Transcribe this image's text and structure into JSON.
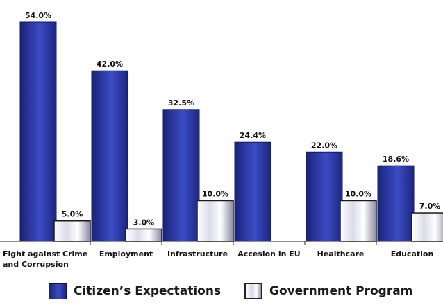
{
  "chart_data": {
    "type": "bar",
    "categories": [
      [
        "Fight against Crime",
        "and Corrupsion"
      ],
      [
        "Employment"
      ],
      [
        "Infrastructure"
      ],
      [
        "Accesion in EU"
      ],
      [
        "Healthcare"
      ],
      [
        "Education"
      ]
    ],
    "series": [
      {
        "name": "Citizen's Expectations",
        "values": [
          54.0,
          42.0,
          32.5,
          24.4,
          22.0,
          18.6
        ],
        "labels": [
          "54.0%",
          "42.0%",
          "32.5%",
          "24.4%",
          "22.0%",
          "18.6%"
        ],
        "color": "#2a3a9e"
      },
      {
        "name": "Government Program",
        "values": [
          5.0,
          3.0,
          10.0,
          null,
          10.0,
          7.0
        ],
        "labels": [
          "5.0%",
          "3.0%",
          "10.0%",
          null,
          "10.0%",
          "7.0%"
        ],
        "color": "#ffffff"
      }
    ],
    "ylim": [
      0,
      60
    ]
  },
  "legend": {
    "citizen": "Citizen’s Expectations",
    "government": "Government Program"
  }
}
